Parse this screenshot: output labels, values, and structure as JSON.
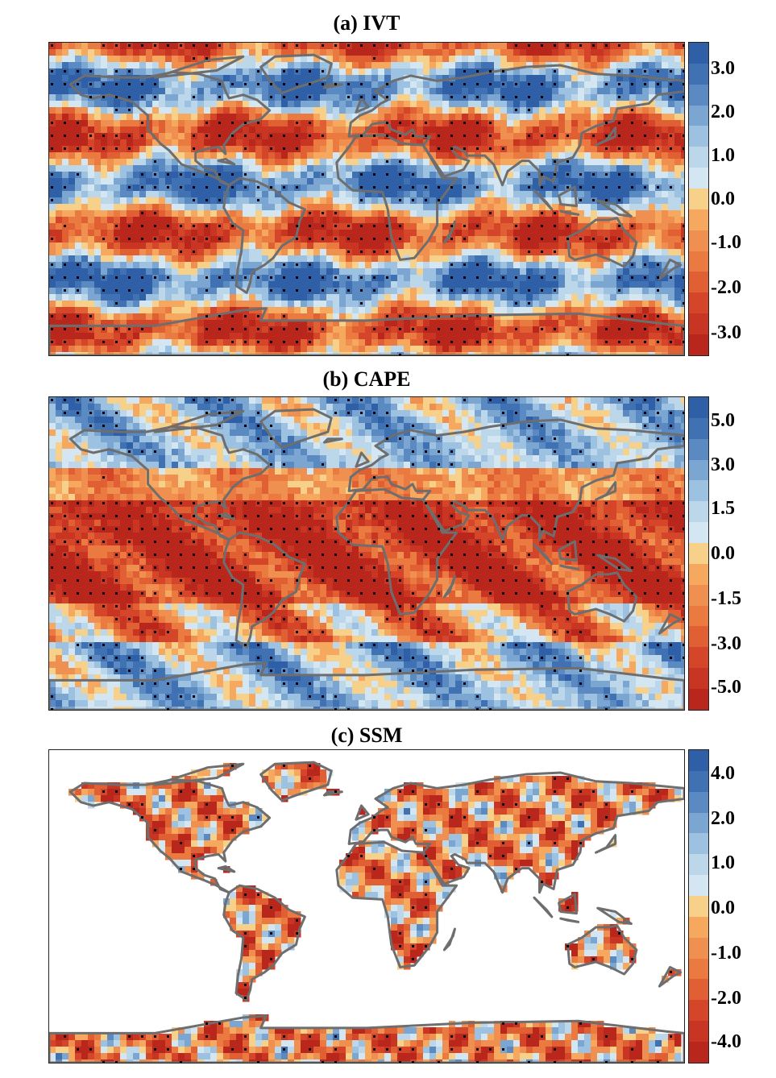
{
  "colors": {
    "blue_dark": "#2f5fa6",
    "blue_mid": "#5b8ac2",
    "blue_light": "#9dc1e0",
    "blue_pale": "#d3e6f1",
    "yellow": "#f7d18a",
    "orange_light": "#f6a85f",
    "orange": "#ea7a3f",
    "red": "#d5452a",
    "red_dark": "#b8261c",
    "coast": "#6e6e6e",
    "stipple": "#000000"
  },
  "panels": [
    {
      "id": "ivt",
      "title": "(a) IVT",
      "colorbar_ticks": [
        "3.0",
        "2.0",
        "1.0",
        "0.0",
        "-1.0",
        "-2.0",
        "-3.0"
      ],
      "colorbar_colors": [
        "#2f5fa6",
        "#3f71b3",
        "#5b8ac2",
        "#7aa6d1",
        "#9dc1e0",
        "#bcd6ea",
        "#d3e6f1",
        "#f7d18a",
        "#f6a85f",
        "#ef9050",
        "#ea7a3f",
        "#e05f33",
        "#d5452a",
        "#c83522",
        "#b8261c"
      ]
    },
    {
      "id": "cape",
      "title": "(b) CAPE",
      "colorbar_ticks": [
        "5.0",
        "3.0",
        "1.5",
        "0.0",
        "-1.5",
        "-3.0",
        "-5.0"
      ],
      "colorbar_colors": [
        "#2f5fa6",
        "#3f71b3",
        "#5b8ac2",
        "#7aa6d1",
        "#9dc1e0",
        "#bcd6ea",
        "#d3e6f1",
        "#f7d18a",
        "#f6a85f",
        "#ef9050",
        "#ea7a3f",
        "#e05f33",
        "#d5452a",
        "#c83522",
        "#b8261c"
      ]
    },
    {
      "id": "ssm",
      "title": "(c) SSM",
      "colorbar_ticks": [
        "4.0",
        "2.0",
        "1.0",
        "0.0",
        "-1.0",
        "-2.0",
        "-4.0"
      ],
      "colorbar_colors": [
        "#2f5fa6",
        "#3f71b3",
        "#5b8ac2",
        "#7aa6d1",
        "#9dc1e0",
        "#bcd6ea",
        "#d3e6f1",
        "#f7d18a",
        "#f6a85f",
        "#ef9050",
        "#ea7a3f",
        "#e05f33",
        "#d5452a",
        "#c83522",
        "#b8261c"
      ]
    }
  ]
}
